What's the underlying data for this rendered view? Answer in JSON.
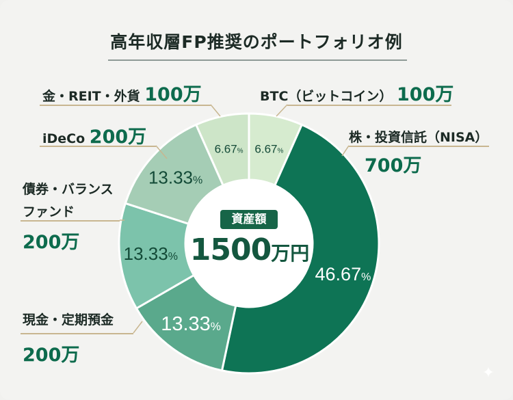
{
  "title": "高年収層FP推奨のポートフォリオ例",
  "center": {
    "badge": "資産額",
    "total_number": "1500",
    "total_unit": "万円"
  },
  "labels": {
    "gold": {
      "name": "金・REIT・外貨",
      "amount": "100万"
    },
    "btc": {
      "name": "BTC（ビットコイン）",
      "amount": "100万"
    },
    "ideco": {
      "name": "iDeCo",
      "amount": "200万"
    },
    "stocks": {
      "name": "株・投資信託（NISA）",
      "amount": "700万"
    },
    "bonds": {
      "name_line1": "債券・バランス",
      "name_line2": "ファンド",
      "amount": "200万"
    },
    "cash": {
      "name": "現金・定期預金",
      "amount": "200万"
    }
  },
  "colors": {
    "background": "#f3f3f1",
    "stocks": "#0e7455",
    "cash": "#5aa98c",
    "bonds": "#7cc3ab",
    "ideco": "#a5cdb5",
    "gold": "#cde5c8",
    "btc": "#d6ebcf",
    "leader": "#c8b690",
    "amount_text": "#0d6b4d"
  },
  "chart_data": {
    "type": "pie",
    "variant": "donut",
    "title": "高年収層FP推奨のポートフォリオ例",
    "center_label": "資産額 1500万円",
    "total": 1500,
    "unit": "万円",
    "categories": [
      "BTC（ビットコイン）",
      "株・投資信託（NISA）",
      "現金・定期預金",
      "債券・バランスファンド",
      "iDeCo",
      "金・REIT・外貨"
    ],
    "values": [
      100,
      700,
      200,
      200,
      200,
      100
    ],
    "percent_labels": [
      "6.67%",
      "46.67%",
      "13.33%",
      "13.33%",
      "13.33%",
      "6.67%"
    ],
    "order": "clockwise from top"
  }
}
